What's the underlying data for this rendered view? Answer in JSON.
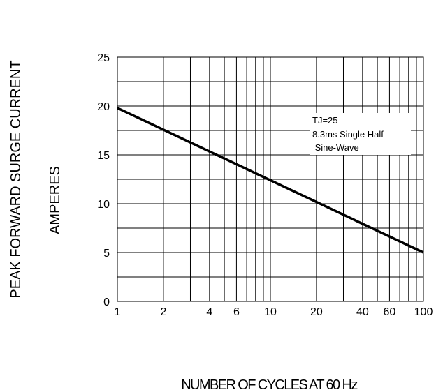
{
  "chart_data": {
    "type": "line",
    "xlabel": "NUMBER OF CYCLES AT 60 Hz",
    "ylabel_lines": [
      "PEAK FORWARD SURGE CURRENT",
      "AMPERES"
    ],
    "x_scale": "log",
    "xlim": [
      1,
      100
    ],
    "ylim": [
      0,
      25
    ],
    "grid": true,
    "x_ticks": [
      1,
      2,
      4,
      6,
      10,
      20,
      40,
      60,
      100
    ],
    "x_tick_labels": [
      "1",
      "2",
      "4",
      "6",
      "10",
      "20",
      "40",
      "60",
      "100"
    ],
    "y_ticks": [
      0,
      5,
      10,
      15,
      20,
      25
    ],
    "y_tick_labels": [
      "0",
      "5",
      "10",
      "15",
      "20",
      "25"
    ],
    "y_gridlines": [
      0,
      2.5,
      5,
      7.5,
      10,
      12.5,
      15,
      17.5,
      20,
      22.5,
      25
    ],
    "x_gridlines": [
      1,
      2,
      3,
      4,
      5,
      6,
      7,
      8,
      9,
      10,
      20,
      30,
      40,
      50,
      60,
      70,
      80,
      90,
      100
    ],
    "series": [
      {
        "x": [
          1,
          100
        ],
        "y": [
          19.8,
          5
        ],
        "color": "#000000"
      }
    ],
    "annotation_lines": [
      "TJ=25",
      "8.3ms Single Half",
      " Sine-Wave"
    ],
    "legend_placement": "top-right"
  }
}
